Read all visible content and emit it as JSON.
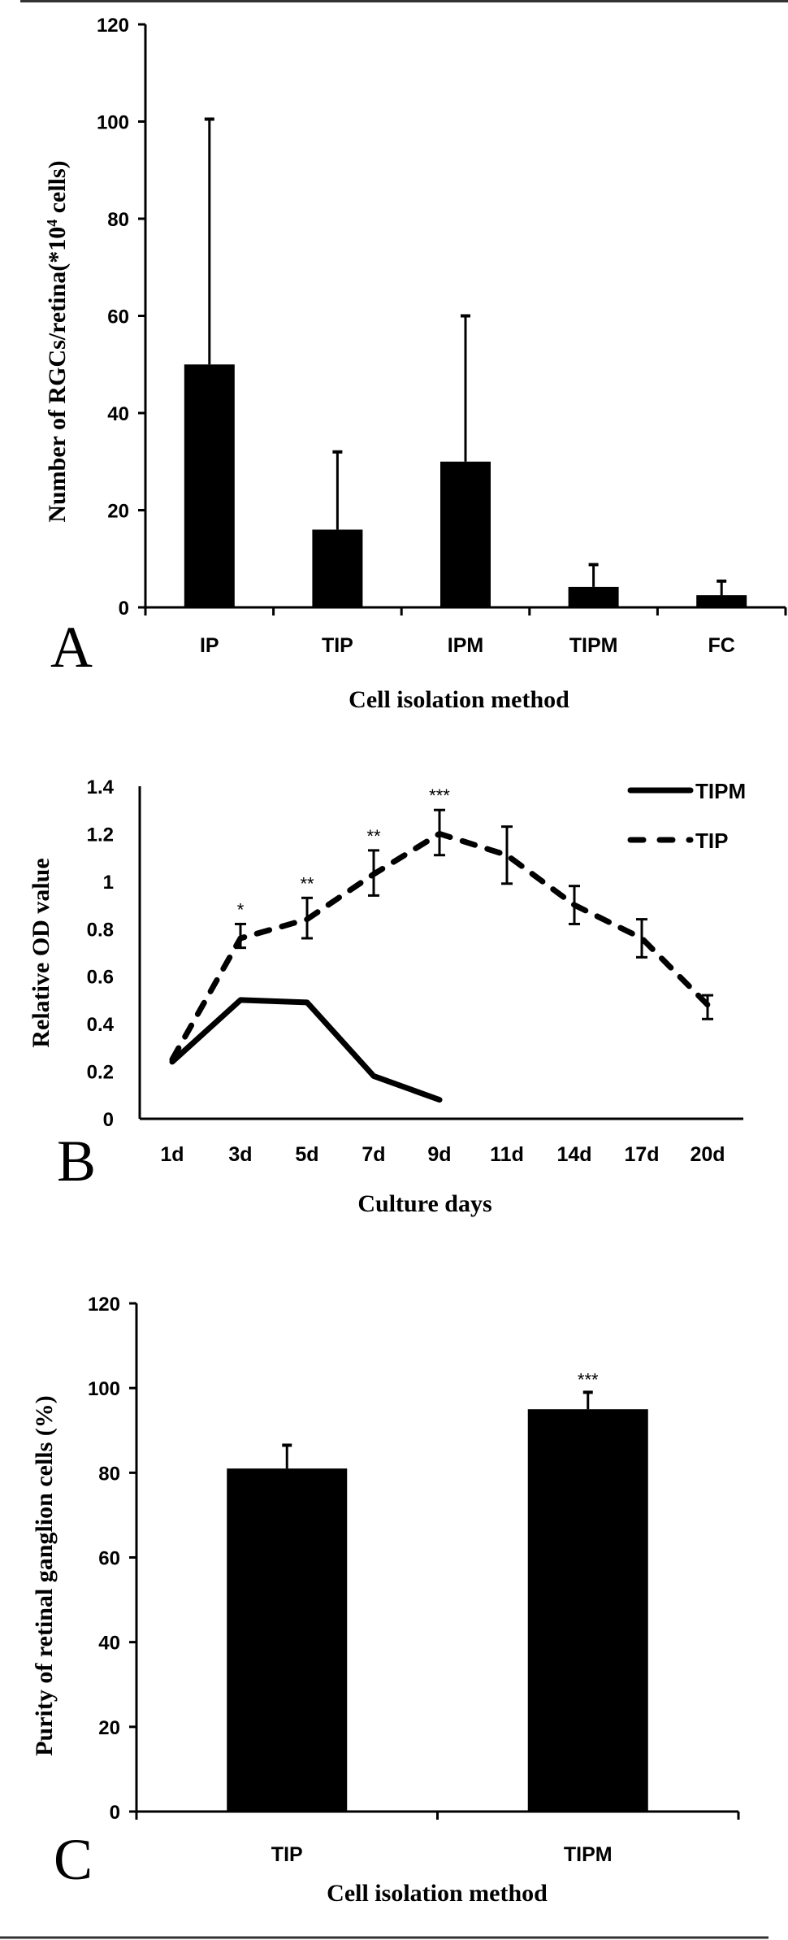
{
  "chart_data": [
    {
      "type": "bar",
      "panel_label": "A",
      "title": "",
      "xlabel": "Cell isolation method",
      "ylabel": "Number of RGCs/retina(*10",
      "ylabel_sup": "4",
      "ylabel_end": " cells)",
      "categories": [
        "IP",
        "TIP",
        "IPM",
        "TIPM",
        "FC"
      ],
      "values": [
        50,
        16,
        30,
        4.2,
        2.5
      ],
      "error_upper": [
        100.5,
        32,
        60,
        8.8,
        5.4
      ],
      "ylim": [
        0,
        120
      ],
      "yticks": [
        "0",
        "20",
        "40",
        "60",
        "80",
        "100",
        "120"
      ],
      "bar_color": "#000000"
    },
    {
      "type": "line",
      "panel_label": "B",
      "title": "",
      "xlabel": "Culture days",
      "ylabel": "Relative OD value",
      "categories": [
        "1d",
        "3d",
        "5d",
        "7d",
        "9d",
        "11d",
        "14d",
        "17d",
        "20d"
      ],
      "ylim": [
        0,
        1.4
      ],
      "yticks": [
        "0",
        "0.2",
        "0.4",
        "0.6",
        "0.8",
        "1",
        "1.2",
        "1.4"
      ],
      "legend_position": "top-right",
      "series": [
        {
          "name": "TIPM",
          "style": "solid",
          "values": [
            0.24,
            0.5,
            0.49,
            0.18,
            0.08,
            null,
            null,
            null,
            null
          ]
        },
        {
          "name": "TIP",
          "style": "dashed",
          "values": [
            0.25,
            0.76,
            0.84,
            1.03,
            1.2,
            1.11,
            0.9,
            0.76,
            0.48
          ],
          "error_low": [
            null,
            0.72,
            0.76,
            0.94,
            1.11,
            0.99,
            0.82,
            0.68,
            0.42
          ],
          "error_high": [
            null,
            0.82,
            0.93,
            1.13,
            1.3,
            1.23,
            0.98,
            0.84,
            0.52
          ]
        }
      ],
      "annotations": [
        {
          "category": "3d",
          "text": "*"
        },
        {
          "category": "5d",
          "text": "**"
        },
        {
          "category": "7d",
          "text": "**"
        },
        {
          "category": "9d",
          "text": "***"
        }
      ]
    },
    {
      "type": "bar",
      "panel_label": "C",
      "title": "",
      "xlabel": "Cell isolation method",
      "ylabel": "Purity of retinal ganglion cells (%)",
      "categories": [
        "TIP",
        "TIPM"
      ],
      "values": [
        81,
        95
      ],
      "error_upper": [
        86.5,
        99
      ],
      "ylim": [
        0,
        120
      ],
      "yticks": [
        "0",
        "20",
        "40",
        "60",
        "80",
        "100",
        "120"
      ],
      "annotations": [
        {
          "category": "TIPM",
          "text": "***"
        }
      ],
      "bar_color": "#000000"
    }
  ]
}
